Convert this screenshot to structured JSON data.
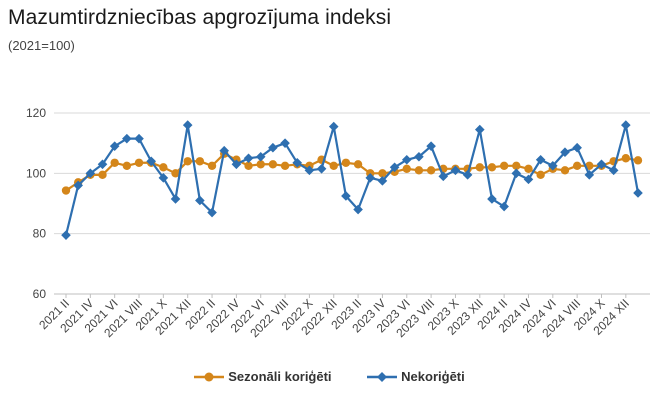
{
  "header": {
    "title": "Mazumtirdzniecības apgrozījuma indeksi",
    "subtitle": "(2021=100)"
  },
  "colors": {
    "sezonali": "#d4861a",
    "nekorigeti": "#2e6fb0",
    "grid": "#d9d9d9",
    "axis": "#bfbfbf"
  },
  "chart_data": {
    "type": "line",
    "ylim": [
      60,
      120
    ],
    "yticks": [
      60,
      80,
      100,
      120
    ],
    "categories": [
      "2021 II",
      "2021 III",
      "2021 IV",
      "2021 V",
      "2021 VI",
      "2021 VII",
      "2021 VIII",
      "2021 IX",
      "2021 X",
      "2021 XI",
      "2021 XII",
      "2022 I",
      "2022 II",
      "2022 III",
      "2022 IV",
      "2022 V",
      "2022 VI",
      "2022 VII",
      "2022 VIII",
      "2022 IX",
      "2022 X",
      "2022 XI",
      "2022 XII",
      "2023 I",
      "2023 II",
      "2023 III",
      "2023 IV",
      "2023 V",
      "2023 VI",
      "2023 VII",
      "2023 VIII",
      "2023 IX",
      "2023 X",
      "2023 XI",
      "2023 XII",
      "2024 I",
      "2024 II",
      "2024 III",
      "2024 IV",
      "2024 V",
      "2024 VI",
      "2024 VII",
      "2024 VIII",
      "2024 IX",
      "2024 X",
      "2024 XI",
      "2024 XII",
      "2025 I"
    ],
    "xticklabels": [
      "2021 II",
      "2021 IV",
      "2021 VI",
      "2021 VIII",
      "2021 X",
      "2021 XII",
      "2022 II",
      "2022 IV",
      "2022 VI",
      "2022 VIII",
      "2022 X",
      "2022 XII",
      "2023 II",
      "2023 IV",
      "2023 VI",
      "2023 VIII",
      "2023 X",
      "2023 XII",
      "2024 II",
      "2024 IV",
      "2024 VI",
      "2024 VIII",
      "2024 X",
      "2024 XII"
    ],
    "series": [
      {
        "name": "Sezonāli koriģēti",
        "marker": "circle",
        "values": [
          94.3,
          97,
          99.5,
          99.5,
          103.5,
          102.5,
          103.5,
          103.5,
          102,
          100,
          104,
          104,
          102.5,
          106.5,
          104.5,
          102.5,
          103,
          103,
          102.5,
          103,
          102.5,
          104.5,
          102.5,
          103.5,
          103,
          100,
          100,
          100.5,
          101.5,
          101,
          101,
          101.5,
          101.5,
          101.5,
          102,
          102,
          102.5,
          102.5,
          101.5,
          99.5,
          101.5,
          101,
          102.5,
          102.5,
          102.5,
          104,
          105,
          104.3
        ]
      },
      {
        "name": "Nekoriģēti",
        "marker": "diamond",
        "values": [
          79.5,
          96,
          100,
          103,
          109,
          111.5,
          111.5,
          104,
          98.5,
          91.5,
          116,
          91,
          87,
          107.5,
          103,
          105,
          105.5,
          108.5,
          110,
          103.5,
          101,
          101.5,
          115.5,
          92.5,
          88,
          98.5,
          97.5,
          102,
          104.5,
          105.5,
          109,
          99,
          101,
          99.5,
          114.5,
          91.5,
          89,
          100,
          98,
          104.5,
          102.5,
          107,
          108.5,
          99.5,
          103,
          101,
          116,
          93.5
        ]
      }
    ]
  }
}
